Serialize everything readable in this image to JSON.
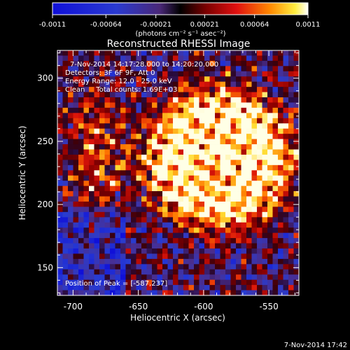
{
  "chart_data": {
    "type": "heatmap",
    "title": "Reconstructed RHESSI Image",
    "xlabel": "Heliocentric X (arcsec)",
    "ylabel": "Heliocentric Y (arcsec)",
    "xlim": [
      -712,
      -527
    ],
    "ylim": [
      128,
      322
    ],
    "x_ticks": [
      -700,
      -650,
      -600,
      -550
    ],
    "x_tick_labels": [
      "-700",
      "-650",
      "-600",
      "-550"
    ],
    "y_ticks": [
      150,
      200,
      250,
      300
    ],
    "y_tick_labels": [
      "150",
      "200",
      "250",
      "300"
    ],
    "colorbar": {
      "range": [
        -0.0011,
        0.0011
      ],
      "ticks": [
        -0.0011,
        -0.00064,
        -0.00021,
        0.00021,
        0.00064,
        0.0011
      ],
      "tick_labels": [
        "-0.0011",
        "-0.00064",
        "-0.00021",
        "0.00021",
        "0.00064",
        "0.0011"
      ],
      "units": "(photons cm⁻² s⁻¹ asec⁻²)"
    },
    "annotations": {
      "time_range": "7-Nov-2014 14:17:28.000 to 14:20:20.000",
      "detectors": "Detectors: 3F 6F 9F, Att 0",
      "energy": "Energy Range: 12.0 - 25.0 keV",
      "clean": "Clean     Total counts: 1.69E+03",
      "peak": "Position of Peak = [-587,237]"
    },
    "peak": [
      -587,
      237
    ],
    "grid": false
  },
  "footer": {
    "timestamp": "7-Nov-2014 17:42"
  }
}
